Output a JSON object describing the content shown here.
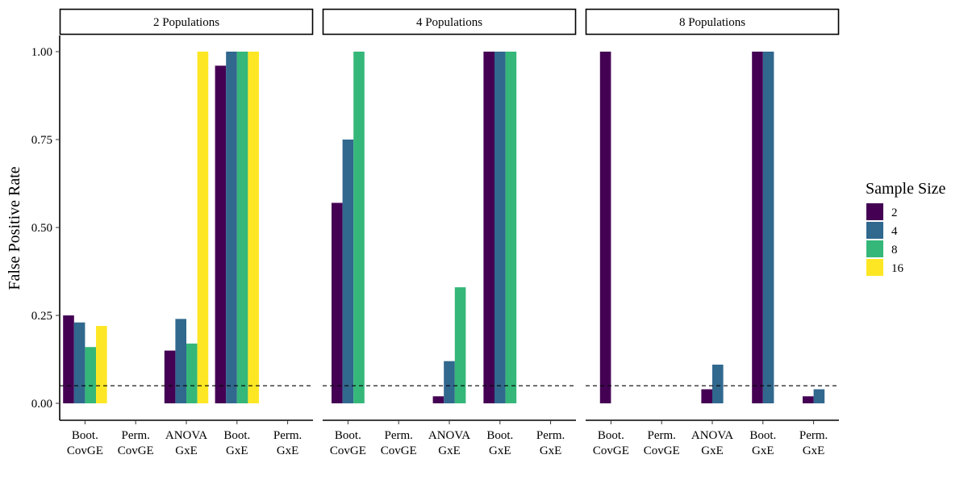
{
  "chart_data": {
    "type": "bar",
    "ylabel": "False Positive Rate",
    "y_ticks": [
      "0.00",
      "0.25",
      "0.50",
      "0.75",
      "1.00"
    ],
    "ylim": [
      -0.04,
      1.05
    ],
    "reference_line": {
      "y": 0.05,
      "style": "dashed"
    },
    "categories": [
      {
        "line1": "Boot.",
        "line2": "CovGE"
      },
      {
        "line1": "Perm.",
        "line2": "CovGE"
      },
      {
        "line1": "ANOVA",
        "line2": "GxE"
      },
      {
        "line1": "Boot.",
        "line2": "GxE"
      },
      {
        "line1": "Perm.",
        "line2": "GxE"
      }
    ],
    "legend": {
      "title": "Sample Size",
      "placement": "right",
      "items": [
        {
          "label": "2",
          "color": "#440154"
        },
        {
          "label": "4",
          "color": "#31688e"
        },
        {
          "label": "8",
          "color": "#35b779"
        },
        {
          "label": "16",
          "color": "#fde725"
        }
      ]
    },
    "facets": [
      {
        "title": "2 Populations",
        "series": [
          {
            "sample_size": "2",
            "values": [
              0.25,
              null,
              0.15,
              0.96,
              null
            ]
          },
          {
            "sample_size": "4",
            "values": [
              0.23,
              null,
              0.24,
              1.0,
              null
            ]
          },
          {
            "sample_size": "8",
            "values": [
              0.16,
              null,
              0.17,
              1.0,
              null
            ]
          },
          {
            "sample_size": "16",
            "values": [
              0.22,
              null,
              1.0,
              1.0,
              null
            ]
          }
        ]
      },
      {
        "title": "4 Populations",
        "series": [
          {
            "sample_size": "2",
            "values": [
              0.57,
              null,
              0.02,
              1.0,
              null
            ]
          },
          {
            "sample_size": "4",
            "values": [
              0.75,
              null,
              0.12,
              1.0,
              null
            ]
          },
          {
            "sample_size": "8",
            "values": [
              1.0,
              null,
              0.33,
              1.0,
              null
            ]
          }
        ]
      },
      {
        "title": "8 Populations",
        "series": [
          {
            "sample_size": "2",
            "values": [
              1.0,
              null,
              0.04,
              1.0,
              0.02
            ]
          },
          {
            "sample_size": "4",
            "values": [
              null,
              null,
              0.11,
              1.0,
              0.04
            ]
          }
        ]
      }
    ]
  }
}
